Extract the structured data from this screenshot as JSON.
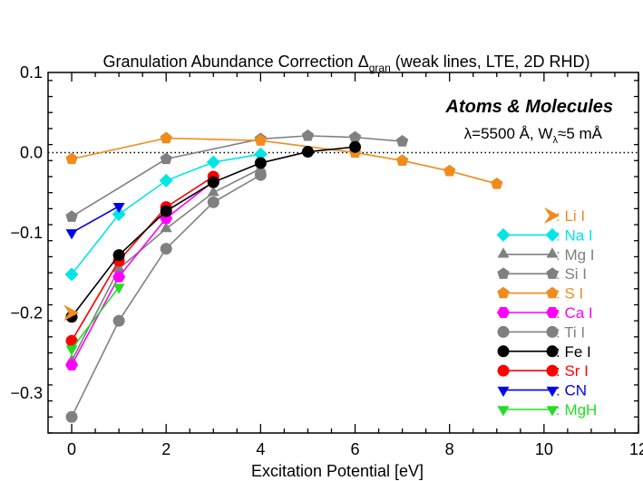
{
  "chart_data": {
    "type": "line",
    "title": "Granulation Abundance Correction Δ",
    "title_subscript": "gran",
    "title_suffix": " (weak lines, LTE, 2D RHD)",
    "annotation_main": "Atoms & Molecules",
    "annotation_sub": "λ=5500 Å, W",
    "annotation_sub_subscript": "λ",
    "annotation_sub_suffix": "≈5 mÅ",
    "xlabel": "Excitation Potential [eV]",
    "ylabel": "",
    "xlim": [
      -0.5,
      12.0
    ],
    "ylim": [
      -0.35,
      0.1
    ],
    "xticks": [
      0,
      2,
      4,
      6,
      8,
      10,
      12
    ],
    "xtick_labels": [
      "0",
      "2",
      "4",
      "6",
      "8",
      "10",
      "12"
    ],
    "yticks": [
      0.1,
      0.0,
      -0.1,
      -0.2,
      -0.3
    ],
    "ytick_labels": [
      "0.1",
      "0.0",
      "−0.1",
      "−0.2",
      "−0.3"
    ],
    "zero_line": true,
    "legend_position": "lower-right",
    "series": [
      {
        "name": "Mg I",
        "legend_label": ": Mg I",
        "color": "#808080",
        "marker": "triangle",
        "x": [
          0,
          1,
          2,
          3,
          4
        ],
        "y": [
          -0.26,
          -0.145,
          -0.095,
          -0.05,
          -0.02
        ]
      },
      {
        "name": "Ti I",
        "legend_label": ": Ti I",
        "color": "#808080",
        "marker": "circle",
        "x": [
          0,
          1,
          2,
          3,
          4
        ],
        "y": [
          -0.33,
          -0.21,
          -0.12,
          -0.062,
          -0.028
        ]
      },
      {
        "name": "Si I",
        "legend_label": ": Si I",
        "color": "#808080",
        "marker": "pentagon",
        "x": [
          0,
          2,
          4,
          5,
          6,
          7
        ],
        "y": [
          -0.08,
          -0.008,
          0.017,
          0.021,
          0.019,
          0.014
        ]
      },
      {
        "name": "Na I",
        "legend_label": ": Na I",
        "color": "#00e5e5",
        "marker": "diamond",
        "x": [
          0,
          1,
          2,
          3,
          4
        ],
        "y": [
          -0.152,
          -0.077,
          -0.035,
          -0.012,
          -0.002
        ]
      },
      {
        "name": "S I",
        "legend_label": ": S I",
        "color": "#f08c1e",
        "marker": "pentagon",
        "x": [
          0,
          2,
          4,
          6,
          7,
          8,
          9
        ],
        "y": [
          -0.008,
          0.018,
          0.015,
          0.0,
          -0.01,
          -0.023,
          -0.039
        ]
      },
      {
        "name": "Ca I",
        "legend_label": ": Ca I",
        "color": "#ff00ff",
        "marker": "hexagon",
        "x": [
          0,
          1,
          2,
          3
        ],
        "y": [
          -0.265,
          -0.155,
          -0.082,
          -0.036
        ]
      },
      {
        "name": "Sr I",
        "legend_label": ": Sr I",
        "color": "#ff0000",
        "marker": "circle",
        "x": [
          0,
          1,
          2,
          3
        ],
        "y": [
          -0.235,
          -0.135,
          -0.068,
          -0.03
        ]
      },
      {
        "name": "Fe I",
        "legend_label": ": Fe I",
        "color": "#000000",
        "marker": "circle",
        "x": [
          0,
          1,
          2,
          3,
          4,
          5,
          6
        ],
        "y": [
          -0.205,
          -0.128,
          -0.073,
          -0.037,
          -0.013,
          0.001,
          0.007
        ]
      },
      {
        "name": "MgH",
        "legend_label": ": MgH",
        "color": "#22dd22",
        "marker": "triangle-down",
        "x": [
          0,
          1
        ],
        "y": [
          -0.245,
          -0.168
        ]
      },
      {
        "name": "CN",
        "legend_label": ": CN",
        "color": "#0000ee",
        "marker": "triangle-down",
        "x": [
          0,
          1
        ],
        "y": [
          -0.1,
          -0.067
        ]
      },
      {
        "name": "Li I",
        "legend_label": ": Li I",
        "color": "#f08c1e",
        "marker": "arrowhead",
        "x": [
          0
        ],
        "y": [
          -0.2
        ]
      }
    ],
    "legend_order": [
      "Li I",
      "Na I",
      "Mg I",
      "Si I",
      "S I",
      "Ca I",
      "Ti I",
      "Fe I",
      "Sr I",
      "CN",
      "MgH"
    ]
  }
}
